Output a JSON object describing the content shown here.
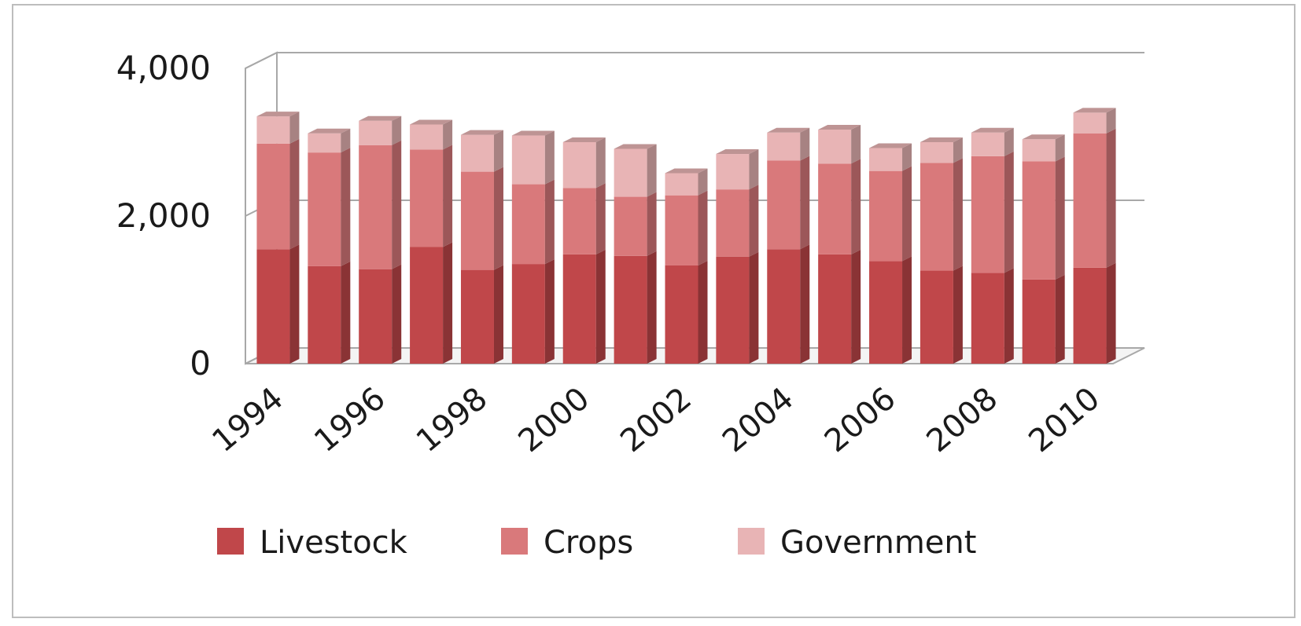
{
  "chart_data": {
    "type": "bar",
    "stacked": true,
    "style": "3d-column",
    "title": "",
    "xlabel": "",
    "ylabel": "",
    "ylim": [
      0,
      4000
    ],
    "y_ticks": [
      0,
      2000,
      4000
    ],
    "y_tick_labels": [
      "0",
      "2,000",
      "4,000"
    ],
    "x_tick_labels": [
      "1994",
      "1996",
      "1998",
      "2000",
      "2002",
      "2004",
      "2006",
      "2008",
      "2010"
    ],
    "categories": [
      "1994",
      "1995",
      "1996",
      "1997",
      "1998",
      "1999",
      "2000",
      "2001",
      "2002",
      "2003",
      "2004",
      "2005",
      "2006",
      "2007",
      "2008",
      "2009",
      "2010"
    ],
    "series": [
      {
        "name": "Livestock",
        "color": "#c0474a",
        "values": [
          1550,
          1320,
          1280,
          1580,
          1270,
          1350,
          1480,
          1460,
          1330,
          1450,
          1550,
          1480,
          1390,
          1260,
          1230,
          1140,
          1300
        ]
      },
      {
        "name": "Crops",
        "color": "#d9797b",
        "values": [
          1430,
          1540,
          1680,
          1320,
          1330,
          1080,
          900,
          800,
          950,
          910,
          1200,
          1230,
          1220,
          1460,
          1580,
          1600,
          1820
        ]
      },
      {
        "name": "Government",
        "color": "#e8b4b5",
        "values": [
          370,
          260,
          330,
          340,
          500,
          660,
          620,
          650,
          300,
          480,
          380,
          460,
          310,
          280,
          320,
          300,
          280
        ]
      }
    ],
    "grid": true,
    "legend_position": "bottom"
  }
}
